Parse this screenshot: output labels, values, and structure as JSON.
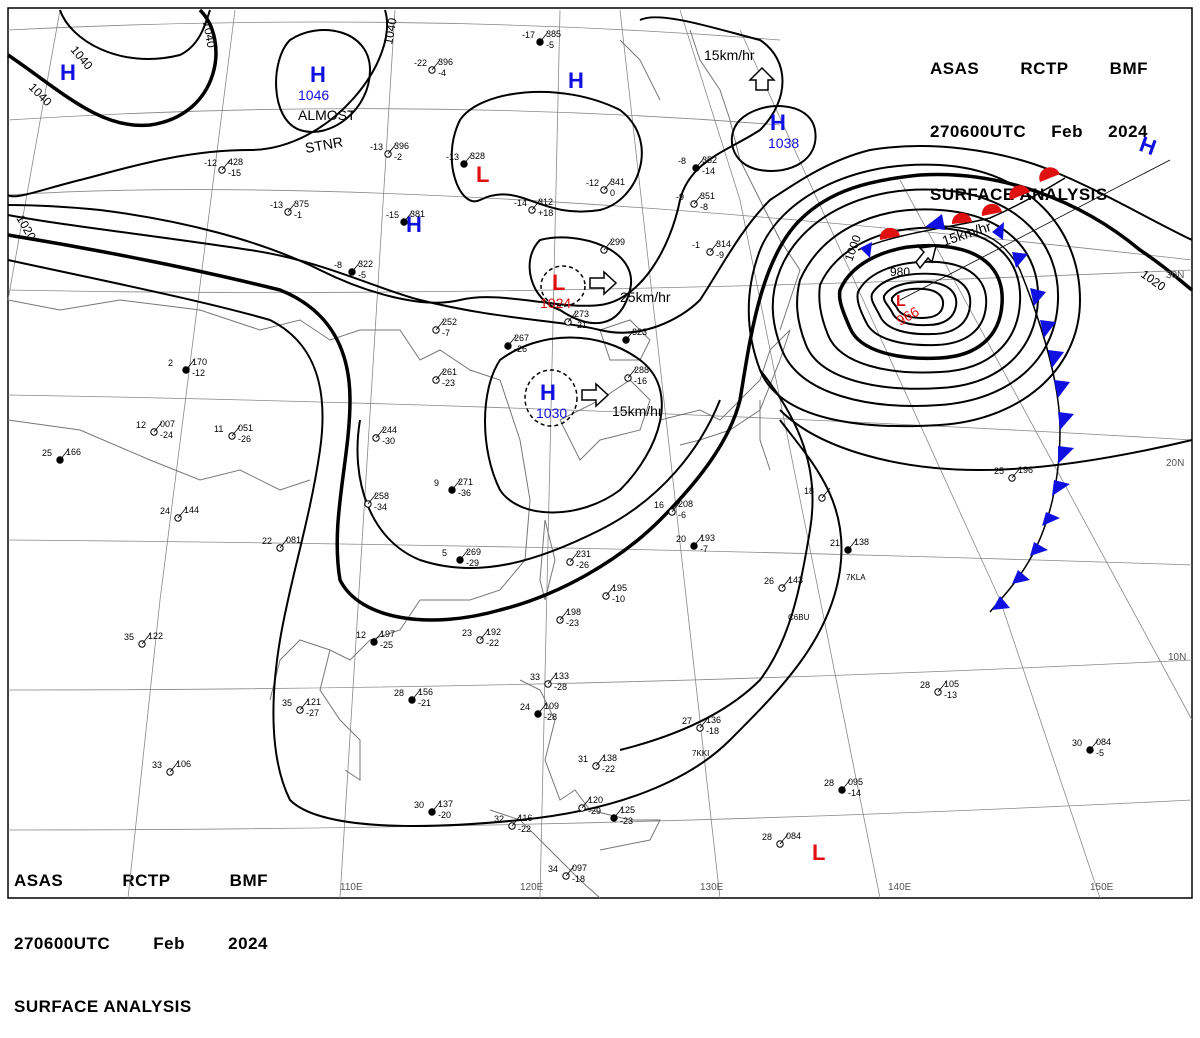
{
  "header": {
    "line1": [
      "ASAS",
      "RCTP",
      "BMF"
    ],
    "line2": [
      "270600UTC",
      "Feb",
      "2024"
    ],
    "line3": "SURFACE ANALYSIS"
  },
  "colors": {
    "high": "#1010e0",
    "low": "#e01010",
    "front_warm": "#e01010",
    "front_cold": "#1010e0",
    "isobar": "#000000",
    "grid": "#888888",
    "coast": "#777777"
  },
  "longitudes": [
    "110E",
    "120E",
    "130E",
    "140E",
    "150E"
  ],
  "latitudes": [
    "30N",
    "20N",
    "10N"
  ],
  "isobar_labels": [
    "1040",
    "1040",
    "1040",
    "1040",
    "1020",
    "1020",
    "1000",
    "980"
  ],
  "pressure_centers": [
    {
      "type": "H",
      "value": ""
    },
    {
      "type": "H",
      "value": "1046",
      "note": [
        "ALMOST",
        "STNR"
      ]
    },
    {
      "type": "H",
      "value": ""
    },
    {
      "type": "H",
      "value": ""
    },
    {
      "type": "H",
      "value": "1038"
    },
    {
      "type": "H",
      "value": ""
    },
    {
      "type": "L",
      "value": ""
    },
    {
      "type": "L",
      "value": "1024"
    },
    {
      "type": "H",
      "value": "1030"
    },
    {
      "type": "L",
      "value": "966"
    },
    {
      "type": "L",
      "value": ""
    }
  ],
  "motions": [
    "15km/hr",
    "25km/hr",
    "15km/hr",
    "15km/hr"
  ],
  "stations": [
    {
      "t": "-17",
      "p": "385",
      "d": "-5"
    },
    {
      "t": "-22",
      "p": "396",
      "d": "-4"
    },
    {
      "t": "-13",
      "p": "396",
      "d": "-2"
    },
    {
      "t": "-13",
      "p": "328",
      "d": ""
    },
    {
      "t": "-12",
      "p": "428",
      "d": "-15"
    },
    {
      "t": "-13",
      "p": "375",
      "d": "-1"
    },
    {
      "t": "-15",
      "p": "381",
      "d": ""
    },
    {
      "t": "-14",
      "p": "312",
      "d": "+18"
    },
    {
      "t": "-12",
      "p": "341",
      "d": "0"
    },
    {
      "t": "-8",
      "p": "352",
      "d": "-14"
    },
    {
      "t": "-9",
      "p": "351",
      "d": "-8"
    },
    {
      "t": "-1",
      "p": "314",
      "d": "-9"
    },
    {
      "t": "-8",
      "p": "322",
      "d": "-5"
    },
    {
      "t": "",
      "p": "252",
      "d": "-7"
    },
    {
      "t": "",
      "p": "273",
      "d": "-21"
    },
    {
      "t": "",
      "p": "267",
      "d": "-26"
    },
    {
      "t": "",
      "p": "261",
      "d": "-23"
    },
    {
      "t": "",
      "p": "288",
      "d": "-16"
    },
    {
      "t": "2",
      "p": "170",
      "d": "-12"
    },
    {
      "t": "12",
      "p": "007",
      "d": "-24"
    },
    {
      "t": "11",
      "p": "051",
      "d": "-26"
    },
    {
      "t": "25",
      "p": "166",
      "d": ""
    },
    {
      "t": "",
      "p": "244",
      "d": "-30"
    },
    {
      "t": "",
      "p": "258",
      "d": "-34"
    },
    {
      "t": "9",
      "p": "271",
      "d": "-36"
    },
    {
      "t": "24",
      "p": "144",
      "d": ""
    },
    {
      "t": "22",
      "p": "081",
      "d": ""
    },
    {
      "t": "5",
      "p": "269",
      "d": "-29"
    },
    {
      "t": "",
      "p": "231",
      "d": "-26"
    },
    {
      "t": "16",
      "p": "208",
      "d": "-6"
    },
    {
      "t": "20",
      "p": "193",
      "d": "-7"
    },
    {
      "t": "",
      "p": "195",
      "d": "-10"
    },
    {
      "t": "",
      "p": "198",
      "d": "-23"
    },
    {
      "t": "12",
      "p": "197",
      "d": "-25"
    },
    {
      "t": "23",
      "p": "192",
      "d": "-22"
    },
    {
      "t": "35",
      "p": "122",
      "d": ""
    },
    {
      "t": "28",
      "p": "156",
      "d": "-21"
    },
    {
      "t": "35",
      "p": "121",
      "d": "-27"
    },
    {
      "t": "33",
      "p": "133",
      "d": "-28"
    },
    {
      "t": "24",
      "p": "109",
      "d": "-28"
    },
    {
      "t": "31",
      "p": "138",
      "d": "-22"
    },
    {
      "t": "33",
      "p": "106",
      "d": ""
    },
    {
      "t": "30",
      "p": "137",
      "d": "-20"
    },
    {
      "t": "32",
      "p": "116",
      "d": "-22"
    },
    {
      "t": "",
      "p": "120",
      "d": "-29"
    },
    {
      "t": "",
      "p": "125",
      "d": "-23"
    },
    {
      "t": "34",
      "p": "097",
      "d": "-18"
    },
    {
      "t": "27",
      "p": "136",
      "d": "-18"
    },
    {
      "t": "28",
      "p": "095",
      "d": "-14"
    },
    {
      "t": "28",
      "p": "084",
      "d": ""
    },
    {
      "t": "28",
      "p": "105",
      "d": "-13"
    },
    {
      "t": "30",
      "p": "084",
      "d": "-5"
    },
    {
      "t": "26",
      "p": "143",
      "d": ""
    },
    {
      "t": "18",
      "p": "",
      "d": ""
    },
    {
      "t": "21",
      "p": "138",
      "d": ""
    },
    {
      "t": "25",
      "p": "196",
      "d": ""
    },
    {
      "t": "",
      "p": "299",
      "d": ""
    },
    {
      "t": "",
      "p": "323",
      "d": ""
    }
  ],
  "ship_ids": [
    "C6BU",
    "7KLA",
    "7KKI"
  ]
}
